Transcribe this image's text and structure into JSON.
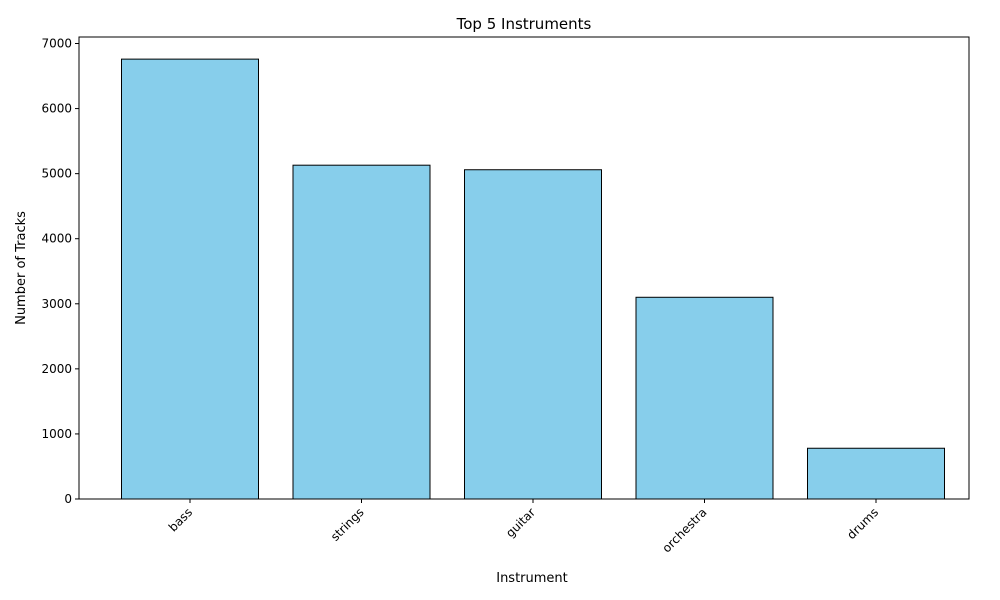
{
  "chart_data": {
    "type": "bar",
    "title": "Top 5 Instruments",
    "x_label": "Instrument",
    "y_label": "Number of Tracks",
    "categories": [
      "bass",
      "strings",
      "guitar",
      "orchestra",
      "drums"
    ],
    "values": [
      6760,
      5130,
      5060,
      3100,
      780
    ],
    "color": "#87ceeb",
    "edge_color": "#000000",
    "ylim": [
      0,
      7100
    ],
    "yticks": [
      0,
      1000,
      2000,
      3000,
      4000,
      5000,
      6000,
      7000
    ],
    "grid": false
  }
}
